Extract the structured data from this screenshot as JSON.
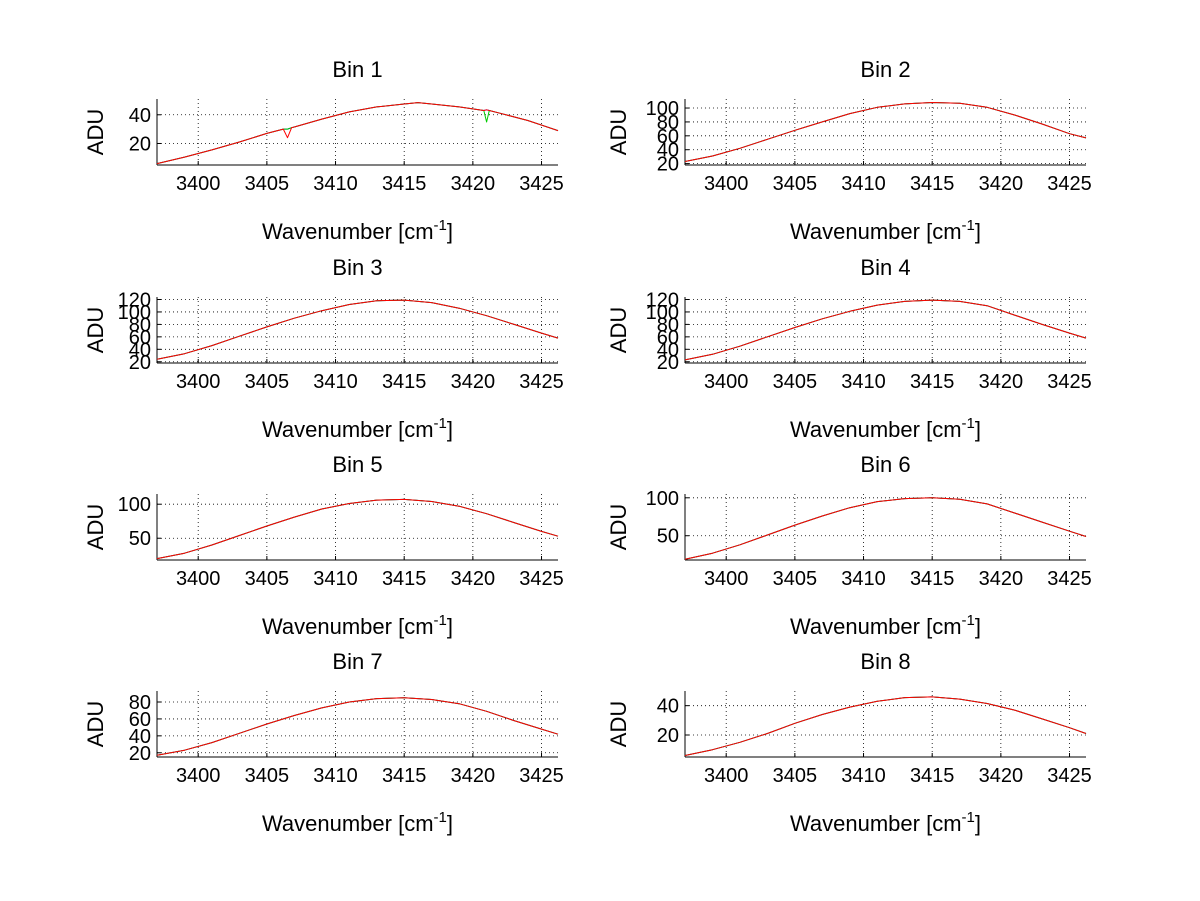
{
  "figure_background": "#ffffff",
  "chart_data": [
    {
      "type": "line",
      "title": "Bin 1",
      "xlabel": "Wavenumber [cm",
      "xlabel_sup": "-1",
      "xlabel_suffix": "]",
      "ylabel": "ADU",
      "xlim": [
        3397,
        3426.2
      ],
      "ylim": [
        5,
        51
      ],
      "xticks": [
        3400,
        3405,
        3410,
        3415,
        3420,
        3425
      ],
      "yticks": [
        20,
        40
      ],
      "grid": true,
      "x": [
        3397,
        3399,
        3401,
        3403,
        3405,
        3406.2,
        3406.5,
        3406.8,
        3407,
        3409,
        3411,
        3413,
        3415,
        3416,
        3417,
        3419,
        3420.8,
        3421,
        3421.2,
        3422,
        3424,
        3426.2
      ],
      "series": [
        {
          "color": "#0000ff",
          "values": [
            6,
            10.5,
            15.5,
            21,
            27,
            30,
            30,
            31,
            31.5,
            37,
            42,
            45.5,
            47.5,
            48.5,
            47.5,
            45.5,
            43,
            43.5,
            43,
            41,
            36,
            29
          ]
        },
        {
          "color": "#00cc00",
          "values": [
            6,
            10.5,
            15.5,
            21,
            27,
            30,
            30,
            31,
            31.5,
            37,
            42,
            45.5,
            47.5,
            48.5,
            47.5,
            45.5,
            43,
            35,
            43,
            41,
            36,
            29
          ]
        },
        {
          "color": "#ff0000",
          "values": [
            6,
            10.5,
            15.5,
            21,
            27,
            30,
            24,
            31,
            31.5,
            37,
            42,
            45.5,
            47.5,
            48.5,
            47.5,
            45.5,
            43,
            43.5,
            43,
            41,
            36,
            29
          ]
        }
      ]
    },
    {
      "type": "line",
      "title": "Bin 2",
      "xlabel": "Wavenumber [cm",
      "xlabel_sup": "-1",
      "xlabel_suffix": "]",
      "ylabel": "ADU",
      "xlim": [
        3397,
        3426.2
      ],
      "ylim": [
        18,
        113
      ],
      "xticks": [
        3400,
        3405,
        3410,
        3415,
        3420,
        3425
      ],
      "yticks": [
        20,
        40,
        60,
        80,
        100
      ],
      "grid": true,
      "x": [
        3397,
        3399,
        3401,
        3403,
        3405,
        3407,
        3409,
        3411,
        3413,
        3415,
        3417,
        3419,
        3421,
        3423,
        3425,
        3426.2
      ],
      "series": [
        {
          "color": "#0000ff",
          "values": [
            23,
            31,
            42,
            55,
            68,
            80,
            92,
            101,
            106,
            108,
            107,
            101,
            90,
            77,
            63,
            57
          ]
        },
        {
          "color": "#00cc00",
          "values": [
            23,
            31,
            42,
            55,
            68,
            80,
            92,
            101,
            106,
            108,
            107,
            101,
            90,
            77,
            63,
            57
          ]
        },
        {
          "color": "#ff0000",
          "values": [
            23,
            31,
            42,
            55,
            68,
            80,
            92,
            101,
            106,
            108,
            107,
            101,
            90,
            77,
            63,
            57
          ]
        }
      ]
    },
    {
      "type": "line",
      "title": "Bin 3",
      "xlabel": "Wavenumber [cm",
      "xlabel_sup": "-1",
      "xlabel_suffix": "]",
      "ylabel": "ADU",
      "xlim": [
        3397,
        3426.2
      ],
      "ylim": [
        18,
        124
      ],
      "xticks": [
        3400,
        3405,
        3410,
        3415,
        3420,
        3425
      ],
      "yticks": [
        20,
        40,
        60,
        80,
        100,
        120
      ],
      "grid": true,
      "x": [
        3397,
        3399,
        3401,
        3403,
        3405,
        3407,
        3409,
        3411,
        3413,
        3415,
        3417,
        3419,
        3421,
        3423,
        3425,
        3426.2
      ],
      "series": [
        {
          "color": "#0000ff",
          "values": [
            24,
            33,
            46,
            61,
            76,
            90,
            102,
            112,
            118,
            119,
            115,
            106,
            94,
            80,
            66,
            58
          ]
        },
        {
          "color": "#00cc00",
          "values": [
            24,
            33,
            46,
            61,
            76,
            90,
            102,
            112,
            118,
            119,
            115,
            106,
            94,
            80,
            66,
            58
          ]
        },
        {
          "color": "#ff0000",
          "values": [
            24,
            33,
            46,
            61,
            76,
            90,
            102,
            112,
            118,
            119,
            115,
            106,
            94,
            80,
            66,
            58
          ]
        }
      ]
    },
    {
      "type": "line",
      "title": "Bin 4",
      "xlabel": "Wavenumber [cm",
      "xlabel_sup": "-1",
      "xlabel_suffix": "]",
      "ylabel": "ADU",
      "xlim": [
        3397,
        3426.2
      ],
      "ylim": [
        18,
        124
      ],
      "xticks": [
        3400,
        3405,
        3410,
        3415,
        3420,
        3425
      ],
      "yticks": [
        20,
        40,
        60,
        80,
        100,
        120
      ],
      "grid": true,
      "x": [
        3397,
        3399,
        3401,
        3403,
        3405,
        3407,
        3409,
        3411,
        3413,
        3415,
        3417,
        3419,
        3421,
        3423,
        3425,
        3426.2
      ],
      "series": [
        {
          "color": "#0000ff",
          "values": [
            23,
            32,
            45,
            60,
            75,
            89,
            101,
            111,
            117,
            119,
            117,
            110,
            95,
            80,
            66,
            58
          ]
        },
        {
          "color": "#00cc00",
          "values": [
            23,
            32,
            45,
            60,
            75,
            89,
            101,
            111,
            117,
            119,
            117,
            110,
            95,
            80,
            66,
            58
          ]
        },
        {
          "color": "#ff0000",
          "values": [
            23,
            32,
            45,
            60,
            75,
            89,
            101,
            111,
            117,
            119,
            117,
            110,
            95,
            80,
            66,
            58
          ]
        }
      ]
    },
    {
      "type": "line",
      "title": "Bin 5",
      "xlabel": "Wavenumber [cm",
      "xlabel_sup": "-1",
      "xlabel_suffix": "]",
      "ylabel": "ADU",
      "xlim": [
        3397,
        3426.2
      ],
      "ylim": [
        18,
        115
      ],
      "xticks": [
        3400,
        3405,
        3410,
        3415,
        3420,
        3425
      ],
      "yticks": [
        50,
        100
      ],
      "grid": true,
      "x": [
        3397,
        3399,
        3401,
        3403,
        3405,
        3407,
        3409,
        3411,
        3413,
        3415,
        3417,
        3419,
        3421,
        3423,
        3425,
        3426.2
      ],
      "series": [
        {
          "color": "#0000ff",
          "values": [
            20,
            28,
            40,
            54,
            68,
            81,
            93,
            101,
            106,
            107,
            104,
            97,
            86,
            73,
            60,
            53
          ]
        },
        {
          "color": "#00cc00",
          "values": [
            20,
            28,
            40,
            54,
            68,
            81,
            93,
            101,
            106,
            107,
            104,
            97,
            86,
            73,
            60,
            53
          ]
        },
        {
          "color": "#ff0000",
          "values": [
            20,
            28,
            40,
            54,
            68,
            81,
            93,
            101,
            106,
            107,
            104,
            97,
            86,
            73,
            60,
            53
          ]
        }
      ]
    },
    {
      "type": "line",
      "title": "Bin 6",
      "xlabel": "Wavenumber [cm",
      "xlabel_sup": "-1",
      "xlabel_suffix": "]",
      "ylabel": "ADU",
      "xlim": [
        3397,
        3426.2
      ],
      "ylim": [
        18,
        105
      ],
      "xticks": [
        3400,
        3405,
        3410,
        3415,
        3420,
        3425
      ],
      "yticks": [
        50,
        100
      ],
      "grid": true,
      "x": [
        3397,
        3399,
        3401,
        3403,
        3405,
        3407,
        3409,
        3411,
        3413,
        3415,
        3417,
        3419,
        3421,
        3423,
        3425,
        3426.2
      ],
      "series": [
        {
          "color": "#0000ff",
          "values": [
            19,
            27,
            38,
            51,
            64,
            76,
            87,
            95,
            99,
            100,
            98,
            92,
            80,
            68,
            56,
            49
          ]
        },
        {
          "color": "#00cc00",
          "values": [
            19,
            27,
            38,
            51,
            64,
            76,
            87,
            95,
            99,
            100,
            98,
            92,
            80,
            68,
            56,
            49
          ]
        },
        {
          "color": "#ff0000",
          "values": [
            19,
            27,
            38,
            51,
            64,
            76,
            87,
            95,
            99,
            100,
            98,
            92,
            80,
            68,
            56,
            49
          ]
        }
      ]
    },
    {
      "type": "line",
      "title": "Bin 7",
      "xlabel": "Wavenumber [cm",
      "xlabel_sup": "-1",
      "xlabel_suffix": "]",
      "ylabel": "ADU",
      "xlim": [
        3397,
        3426.2
      ],
      "ylim": [
        15,
        93
      ],
      "xticks": [
        3400,
        3405,
        3410,
        3415,
        3420,
        3425
      ],
      "yticks": [
        20,
        40,
        60,
        80
      ],
      "grid": true,
      "x": [
        3397,
        3399,
        3401,
        3403,
        3405,
        3407,
        3409,
        3411,
        3413,
        3415,
        3417,
        3419,
        3421,
        3423,
        3425,
        3426.2
      ],
      "series": [
        {
          "color": "#0000ff",
          "values": [
            17,
            23,
            32,
            43,
            54,
            64,
            73,
            80,
            84,
            85,
            83,
            78,
            69,
            58,
            48,
            42
          ]
        },
        {
          "color": "#00cc00",
          "values": [
            17,
            23,
            32,
            43,
            54,
            64,
            73,
            80,
            84,
            85,
            83,
            78,
            69,
            58,
            48,
            42
          ]
        },
        {
          "color": "#ff0000",
          "values": [
            17,
            23,
            32,
            43,
            54,
            64,
            73,
            80,
            84,
            85,
            83,
            78,
            69,
            58,
            48,
            42
          ]
        }
      ]
    },
    {
      "type": "line",
      "title": "Bin 8",
      "xlabel": "Wavenumber [cm",
      "xlabel_sup": "-1",
      "xlabel_suffix": "]",
      "ylabel": "ADU",
      "xlim": [
        3397,
        3426.2
      ],
      "ylim": [
        5,
        50
      ],
      "xticks": [
        3400,
        3405,
        3410,
        3415,
        3420,
        3425
      ],
      "yticks": [
        20,
        40
      ],
      "grid": true,
      "x": [
        3397,
        3399,
        3401,
        3403,
        3405,
        3407,
        3409,
        3411,
        3413,
        3415,
        3417,
        3419,
        3421,
        3423,
        3425,
        3426.2
      ],
      "series": [
        {
          "color": "#0000ff",
          "values": [
            6,
            10,
            15,
            21,
            28,
            34,
            39,
            43,
            45.5,
            46,
            44.5,
            41.5,
            37,
            31,
            25,
            21
          ]
        },
        {
          "color": "#00cc00",
          "values": [
            6,
            10,
            15,
            21,
            28,
            34,
            39,
            43,
            45.5,
            46,
            44.5,
            41.5,
            37,
            31,
            25,
            21
          ]
        },
        {
          "color": "#ff0000",
          "values": [
            6,
            10,
            15,
            21,
            28,
            34,
            39,
            43,
            45.5,
            46,
            44.5,
            41.5,
            37,
            31,
            25,
            21
          ]
        }
      ]
    }
  ]
}
